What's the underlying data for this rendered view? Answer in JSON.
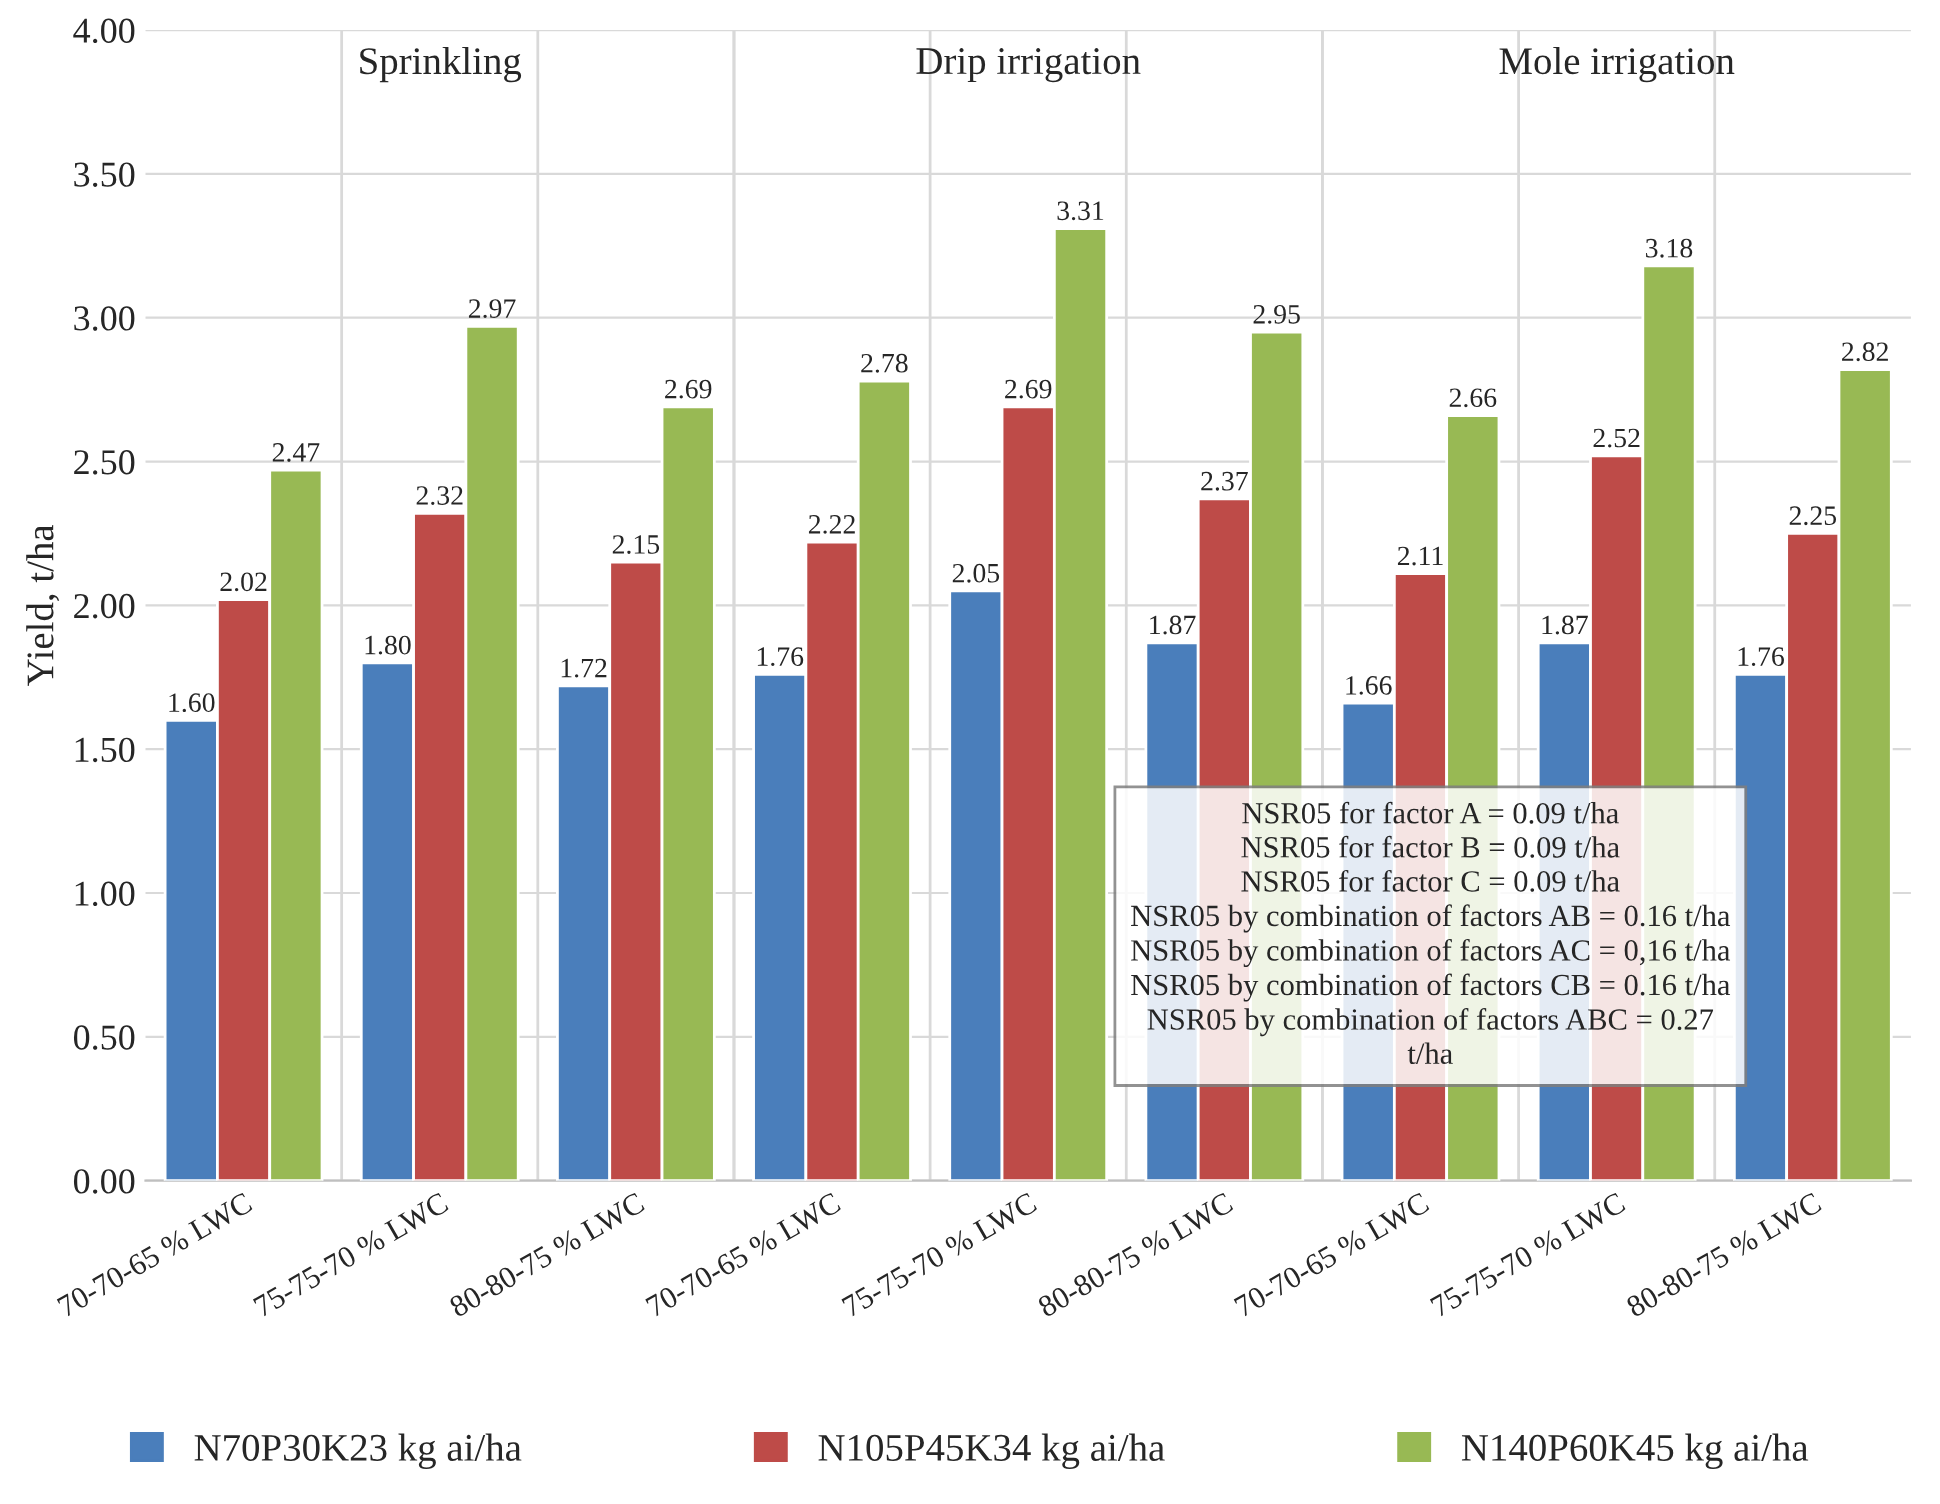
{
  "chart_data": {
    "type": "bar",
    "ylabel": "Yield, t/ha",
    "categories": [
      "70-70-65 % LWC",
      "75-75-70 % LWC",
      "80-80-75 % LWC",
      "70-70-65 % LWC",
      "75-75-70 % LWC",
      "80-80-75 % LWC",
      "70-70-65 % LWC",
      "75-75-70 % LWC",
      "80-80-75 % LWC"
    ],
    "series": [
      {
        "name": "N70P30K23 kg ai/ha",
        "color": "#4a7ebb",
        "values": [
          1.6,
          1.8,
          1.72,
          1.76,
          2.05,
          1.87,
          1.66,
          1.87,
          1.76
        ],
        "value_labels": [
          "1.60",
          "1.80",
          "1.72",
          "1.76",
          "2.05",
          "1.87",
          "1.66",
          "1.87",
          "1.76"
        ]
      },
      {
        "name": "N105P45K34 kg ai/ha",
        "color": "#be4b48",
        "values": [
          2.02,
          2.32,
          2.15,
          2.22,
          2.69,
          2.37,
          2.11,
          2.52,
          2.25
        ],
        "value_labels": [
          "2.02",
          "2.32",
          "2.15",
          "2.22",
          "2.69",
          "2.37",
          "2.11",
          "2.52",
          "2.25"
        ]
      },
      {
        "name": "N140P60K45 kg ai/ha",
        "color": "#98b954",
        "values": [
          2.47,
          2.97,
          2.69,
          2.78,
          3.31,
          2.95,
          2.66,
          3.18,
          2.82
        ],
        "value_labels": [
          "2.47",
          "2.97",
          "2.69",
          "2.78",
          "3.31",
          "2.95",
          "2.66",
          "3.18",
          "2.82"
        ]
      }
    ],
    "ylim": [
      0,
      4
    ],
    "yticks": [
      {
        "value": 0,
        "label": "0.00"
      },
      {
        "value": 0.5,
        "label": "0.50"
      },
      {
        "value": 1,
        "label": "1.00"
      },
      {
        "value": 1.5,
        "label": "1.50"
      },
      {
        "value": 2,
        "label": "2.00"
      },
      {
        "value": 2.5,
        "label": "2.50"
      },
      {
        "value": 3,
        "label": "3.00"
      },
      {
        "value": 3.5,
        "label": "3.50"
      },
      {
        "value": 4,
        "label": "4.00"
      }
    ],
    "grid": true,
    "legend": "bottom",
    "annotations": [
      "Sprinkling",
      "Drip irrigation",
      "Mole irrigation",
      "NSR05 for factor A = 0.09 t/ha",
      "NSR05 for factor B = 0.09 t/ha",
      "NSR05 for factor C = 0.09 t/ha",
      "NSR05 by combination of factors AB = 0.16 t/ha",
      "NSR05 by combination of factors AC = 0,16 t/ha",
      "NSR05 by combination of factors CB = 0.16 t/ha",
      "NSR05 by combination of factors ABC = 0.27\nt/ha"
    ]
  }
}
